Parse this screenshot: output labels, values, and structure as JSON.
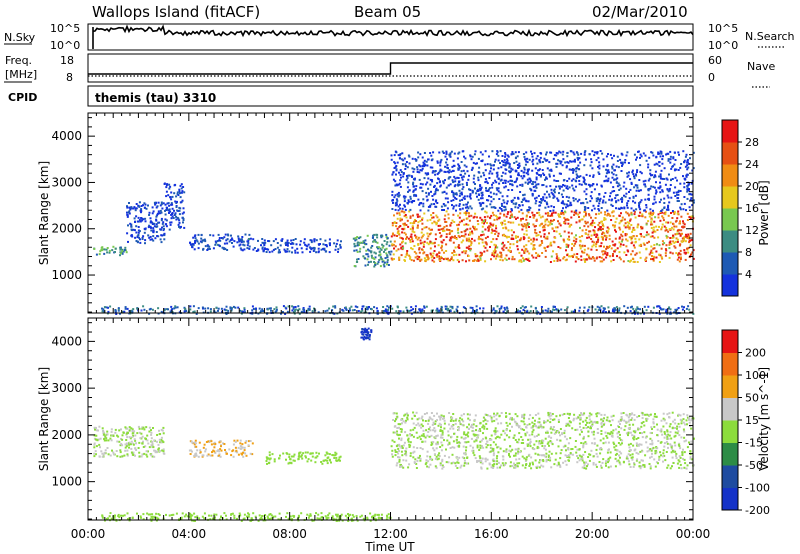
{
  "header": {
    "site": "Wallops Island (fitACF)",
    "beam": "Beam 05",
    "date": "02/Mar/2010"
  },
  "nsky_panel": {
    "left_label": "N.Sky",
    "left_ticks": [
      "10^5",
      "10^0"
    ],
    "right_label": "N.Search",
    "right_ticks": [
      "10^5",
      "10^0"
    ]
  },
  "freq_panel": {
    "left_label_1": "Freq.",
    "left_label_2": "[MHz]",
    "left_ticks": [
      "18",
      "8"
    ],
    "right_label": "Nave",
    "right_ticks": [
      "60",
      "0"
    ]
  },
  "cpid": {
    "label": "CPID",
    "value": "themis (tau) 3310"
  },
  "x_axis": {
    "label": "Time UT",
    "ticks": [
      "00:00",
      "04:00",
      "08:00",
      "12:00",
      "16:00",
      "20:00",
      "00:00"
    ]
  },
  "chart_data": [
    {
      "type": "heatmap",
      "title": "Power",
      "ylabel": "Slant Range [km]",
      "xlabel": "Time UT",
      "x_range_hours": [
        0,
        24
      ],
      "ylim": [
        180,
        4500
      ],
      "y_ticks": [
        1000,
        2000,
        3000,
        4000
      ],
      "colorbar": {
        "label": "Power [dB]",
        "ticks": [
          "4",
          "8",
          "12",
          "16",
          "20",
          "24",
          "28"
        ],
        "range": [
          0,
          30
        ],
        "colors": [
          "#1432dc",
          "#1e5ab4",
          "#3c8c82",
          "#78c850",
          "#e6c81e",
          "#f08c14",
          "#e65014",
          "#e61414"
        ]
      },
      "echo_regions": [
        {
          "t_start": 0.2,
          "t_end": 1.5,
          "range_low": 1450,
          "range_high": 1650,
          "value": 10
        },
        {
          "t_start": 1.5,
          "t_end": 3.0,
          "range_low": 1700,
          "range_high": 2600,
          "value": 3
        },
        {
          "t_start": 3.0,
          "t_end": 3.8,
          "range_low": 2000,
          "range_high": 3000,
          "value": 3
        },
        {
          "t_start": 4.0,
          "t_end": 6.5,
          "range_low": 1550,
          "range_high": 1900,
          "value": 4
        },
        {
          "t_start": 6.5,
          "t_end": 10.0,
          "range_low": 1500,
          "range_high": 1800,
          "value": 3
        },
        {
          "t_start": 10.5,
          "t_end": 12.0,
          "range_low": 1200,
          "range_high": 1900,
          "value": 9
        },
        {
          "t_start": 12.0,
          "t_end": 24.0,
          "range_low": 1300,
          "range_high": 2400,
          "value": 22
        },
        {
          "t_start": 12.0,
          "t_end": 24.0,
          "range_low": 2400,
          "range_high": 3700,
          "value": 2
        },
        {
          "t_start": 0.5,
          "t_end": 24.0,
          "range_low": 180,
          "range_high": 350,
          "value": 6
        }
      ]
    },
    {
      "type": "heatmap",
      "title": "Velocity",
      "ylabel": "Slant Range [km]",
      "xlabel": "Time UT",
      "x_range_hours": [
        0,
        24
      ],
      "ylim": [
        180,
        4500
      ],
      "y_ticks": [
        1000,
        2000,
        3000,
        4000
      ],
      "colorbar": {
        "label": "Velocity [m s^-1]",
        "ticks": [
          "200",
          "100",
          "50",
          "15",
          "-15",
          "-50",
          "-100",
          "-200"
        ],
        "range": [
          -250,
          250
        ],
        "colors": [
          "#1432c8",
          "#1e4ba0",
          "#2d8c46",
          "#8cdc3c",
          "#c8c8c8",
          "#f0a014",
          "#f06e14",
          "#e61414"
        ]
      },
      "echo_regions": [
        {
          "t_start": 0.2,
          "t_end": 3.0,
          "range_low": 1550,
          "range_high": 2200,
          "value": 0
        },
        {
          "t_start": 4.0,
          "t_end": 6.5,
          "range_low": 1550,
          "range_high": 1900,
          "value": 60
        },
        {
          "t_start": 7.0,
          "t_end": 10.0,
          "range_low": 1400,
          "range_high": 1650,
          "value": -40
        },
        {
          "t_start": 10.8,
          "t_end": 11.2,
          "range_low": 4050,
          "range_high": 4300,
          "value": -220
        },
        {
          "t_start": 12.0,
          "t_end": 24.0,
          "range_low": 1300,
          "range_high": 2500,
          "value": 0
        },
        {
          "t_start": 0.5,
          "t_end": 12.0,
          "range_low": 180,
          "range_high": 350,
          "value": -40
        }
      ]
    }
  ]
}
